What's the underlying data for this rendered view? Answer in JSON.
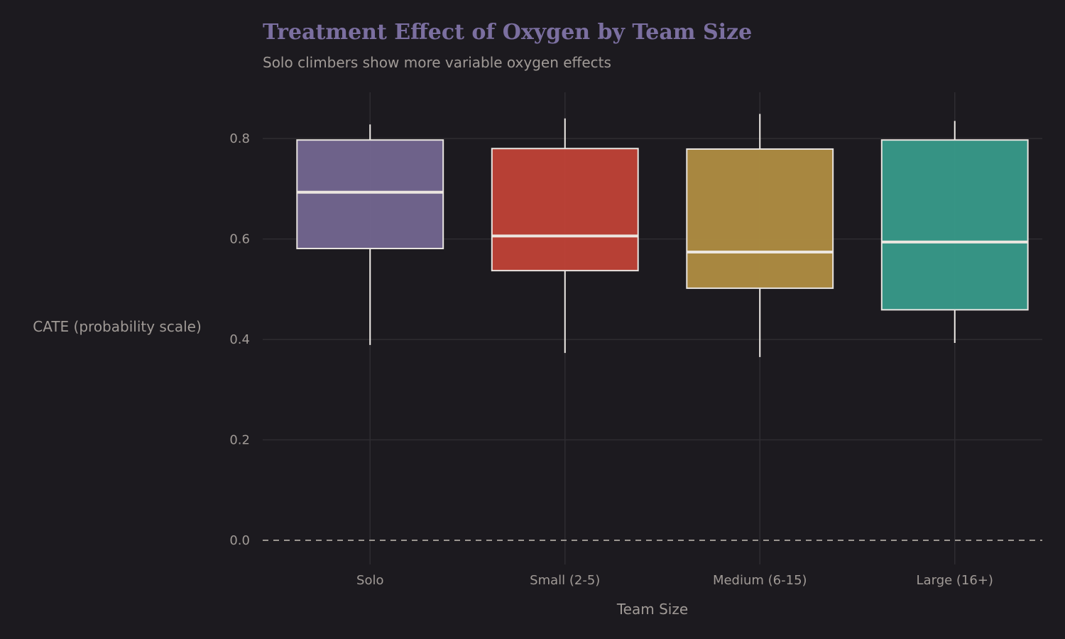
{
  "chart_data": {
    "type": "box",
    "title": "Treatment Effect of Oxygen by Team Size",
    "subtitle": "Solo climbers show more variable oxygen effects",
    "xlabel": "Team Size",
    "ylabel": "CATE (probability scale)",
    "ylim": [
      -0.048,
      0.892
    ],
    "yticks": [
      "0.0",
      "0.2",
      "0.4",
      "0.6",
      "0.8"
    ],
    "ytick_values": [
      0,
      0.2,
      0.4,
      0.6,
      0.8
    ],
    "grid": true,
    "reference_line": 0,
    "categories": [
      "Solo",
      "Small (2-5)",
      "Medium (6-15)",
      "Large (16+)"
    ],
    "boxes": [
      {
        "name": "Solo",
        "whisker_low": 0.389,
        "q1": 0.581,
        "median": 0.693,
        "q3": 0.797,
        "whisker_high": 0.828,
        "color": "#736690"
      },
      {
        "name": "Small (2-5)",
        "whisker_low": 0.373,
        "q1": 0.537,
        "median": 0.606,
        "q3": 0.78,
        "whisker_high": 0.84,
        "color": "#c04237"
      },
      {
        "name": "Medium (6-15)",
        "whisker_low": 0.365,
        "q1": 0.502,
        "median": 0.574,
        "q3": 0.779,
        "whisker_high": 0.849,
        "color": "#b08d42"
      },
      {
        "name": "Large (16+)",
        "whisker_low": 0.393,
        "q1": 0.459,
        "median": 0.594,
        "q3": 0.797,
        "whisker_high": 0.835,
        "color": "#389a8a"
      }
    ]
  }
}
